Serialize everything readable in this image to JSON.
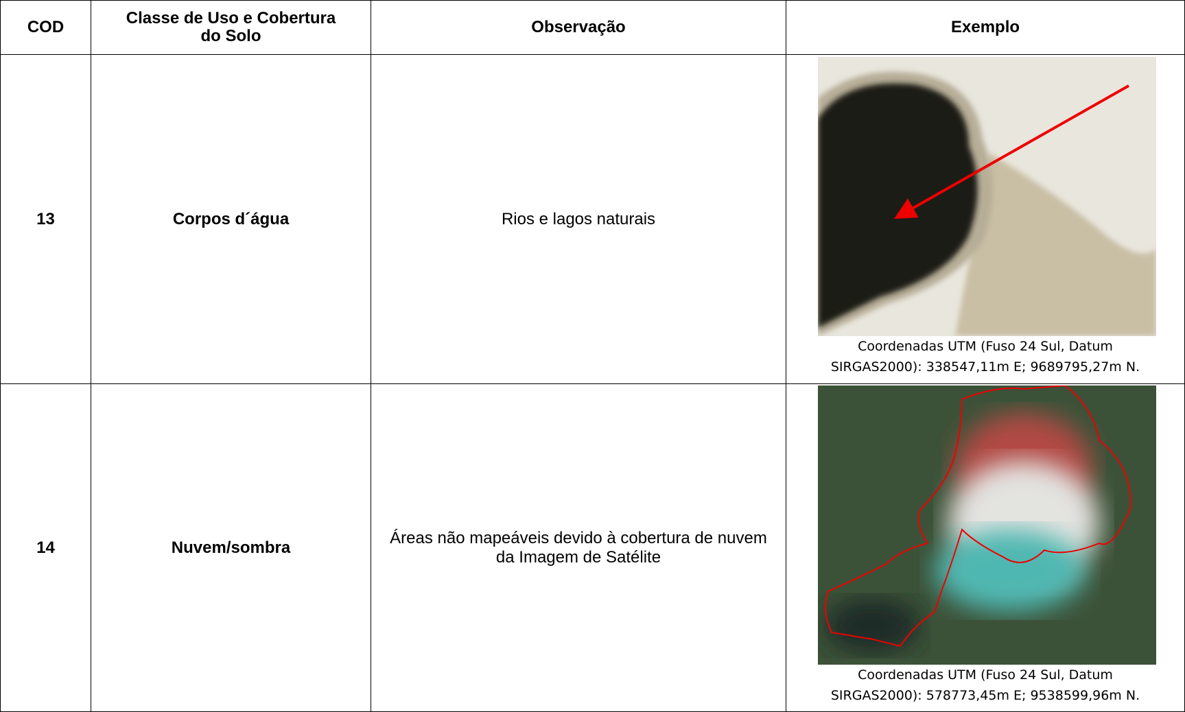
{
  "header": [
    "COD",
    "Classe de Uso e Cobertura do Solo",
    "Observação",
    "Exemplo"
  ],
  "rows": [
    {
      "cod": "13",
      "classe": "Corpos d´água",
      "observacao": "Rios e lagos naturais",
      "caption": [
        "Coordenadas UTM (Fuso 24 Sul, Datum",
        "SIRGAS2000): 338547,11m E; 9689795,27m N."
      ]
    },
    {
      "cod": "14",
      "classe": "Nuvem/sombra",
      "observacao": "Áreas não mapeáveis devido à cobertura de nuvem da Imagem de Satélite",
      "caption": [
        "Coordenadas UTM (Fuso 24 Sul, Datum",
        "SIRGAS2000): 578773,45m E; 9538599,96m N."
      ]
    }
  ]
}
